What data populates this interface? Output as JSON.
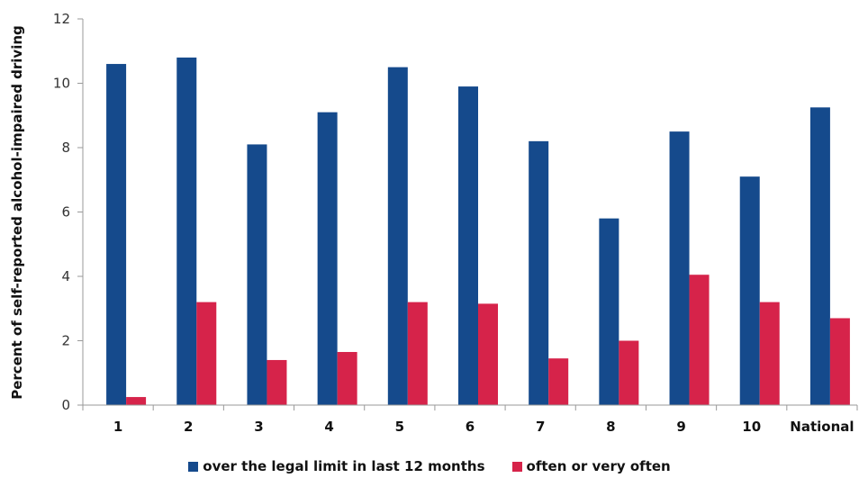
{
  "chart_data": {
    "type": "bar",
    "title": "",
    "xlabel": "",
    "ylabel": "Percent of self-reported alcohol-impaired driving",
    "ylim": [
      0,
      12
    ],
    "yticks": [
      0,
      2,
      4,
      6,
      8,
      10,
      12
    ],
    "grid": false,
    "legend_position": "bottom",
    "categories": [
      "1",
      "2",
      "3",
      "4",
      "5",
      "6",
      "7",
      "8",
      "9",
      "10",
      "National"
    ],
    "series": [
      {
        "name": "over the legal limit in last 12 months",
        "color": "#154a8c",
        "values": [
          10.6,
          10.8,
          8.1,
          9.1,
          10.5,
          9.9,
          8.2,
          5.8,
          8.5,
          7.1,
          9.25
        ]
      },
      {
        "name": "often or very often",
        "color": "#d6234a",
        "values": [
          0.25,
          3.2,
          1.4,
          1.65,
          3.2,
          3.15,
          1.45,
          2.0,
          4.05,
          3.2,
          2.7
        ]
      }
    ]
  }
}
